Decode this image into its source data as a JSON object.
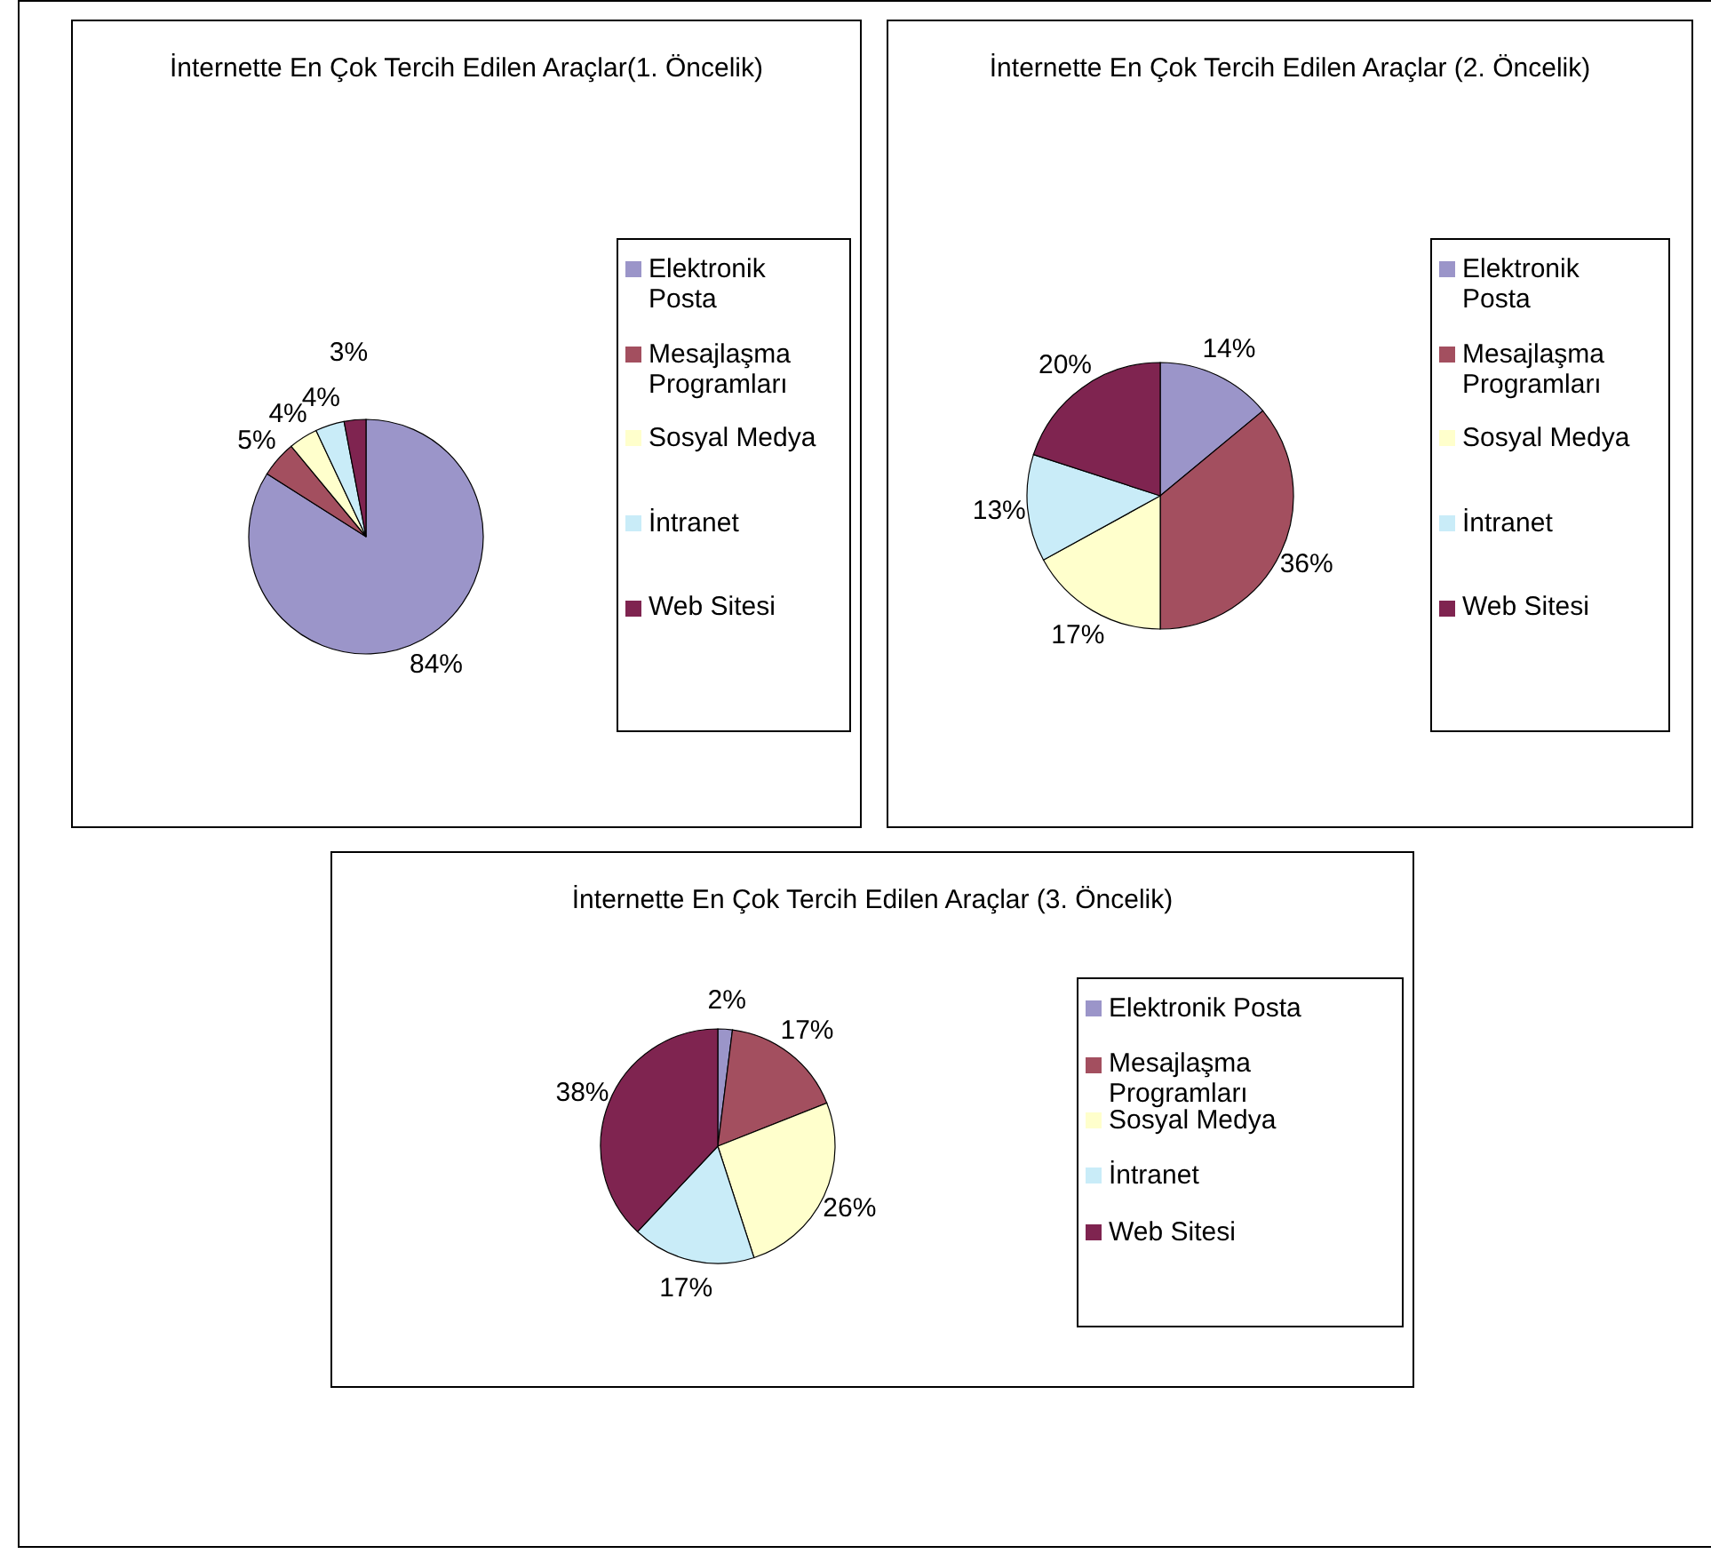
{
  "chart_data": [
    {
      "type": "pie",
      "title": "İnternette En Çok Tercih Edilen Araçlar(1. Öncelik)",
      "categories": [
        "Elektronik Posta",
        "Mesajlaşma Programları",
        "Sosyal Medya",
        "İntranet",
        "Web Sitesi"
      ],
      "values": [
        84,
        5,
        4,
        4,
        3
      ],
      "value_labels": [
        "84%",
        "5%",
        "4%",
        "4%",
        "3%"
      ],
      "colors": [
        "#9b95c9",
        "#a34f5f",
        "#ffffcc",
        "#c9ecf8",
        "#7f2450"
      ],
      "legend": "right"
    },
    {
      "type": "pie",
      "title": "İnternette En Çok Tercih Edilen Araçlar (2. Öncelik)",
      "categories": [
        "Elektronik Posta",
        "Mesajlaşma Programları",
        "Sosyal Medya",
        "İntranet",
        "Web Sitesi"
      ],
      "values": [
        14,
        36,
        17,
        13,
        20
      ],
      "value_labels": [
        "14%",
        "36%",
        "17%",
        "13%",
        "20%"
      ],
      "colors": [
        "#9b95c9",
        "#a34f5f",
        "#ffffcc",
        "#c9ecf8",
        "#7f2450"
      ],
      "legend": "right"
    },
    {
      "type": "pie",
      "title": "İnternette En Çok Tercih Edilen Araçlar (3. Öncelik)",
      "categories": [
        "Elektronik Posta",
        "Mesajlaşma Programları",
        "Sosyal Medya",
        "İntranet",
        "Web Sitesi"
      ],
      "values": [
        2,
        17,
        26,
        17,
        38
      ],
      "value_labels": [
        "2%",
        "17%",
        "26%",
        "17%",
        "38%"
      ],
      "colors": [
        "#9b95c9",
        "#a34f5f",
        "#ffffcc",
        "#c9ecf8",
        "#7f2450"
      ],
      "legend": "right"
    }
  ]
}
